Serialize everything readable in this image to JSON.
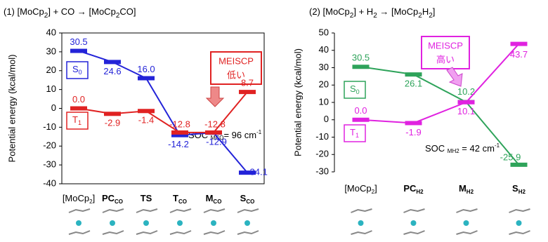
{
  "chart_data": [
    {
      "type": "line",
      "title": [
        "(1) [MoCp",
        "2",
        "] + CO  →   [MoCp",
        "2",
        "CO]"
      ],
      "y_label": "Potential energy (kcal/mol)",
      "categories": [
        [
          "[MoCp",
          "2",
          "]"
        ],
        [
          "PC",
          "CO"
        ],
        [
          "TS"
        ],
        [
          "T",
          "CO"
        ],
        [
          "M",
          "CO"
        ],
        [
          "S",
          "CO"
        ]
      ],
      "series": [
        {
          "name": [
            "S",
            "0"
          ],
          "color": "#2323d8",
          "values": [
            30.5,
            24.6,
            16.0,
            -14.2,
            -12.9,
            -34.1
          ],
          "value_labels": [
            "30.5",
            "24.6",
            "16.0",
            "-14.2",
            "-12.9",
            "-34.1"
          ]
        },
        {
          "name": [
            "T",
            "1"
          ],
          "color": "#e02222",
          "values": [
            0.0,
            -2.9,
            -1.4,
            -12.8,
            -12.8,
            8.7
          ],
          "value_labels": [
            "0.0",
            "-2.9",
            "-1.4",
            "-12.8",
            "-12.8",
            "8.7"
          ]
        }
      ],
      "ylim": [
        -40,
        40
      ],
      "yticks": [
        -40,
        -30,
        -20,
        -10,
        0,
        10,
        20,
        30,
        40
      ],
      "annotation_box": [
        "MEISCP",
        "低い"
      ],
      "soc": [
        "SOC ",
        "MCO",
        "= 96 cm",
        "-1"
      ]
    },
    {
      "type": "line",
      "title": [
        "(2) [MoCp",
        "2",
        "] + H",
        "2",
        "  →   [MoCp",
        "2",
        "H",
        "2",
        "]"
      ],
      "y_label": "Potential energy (kcal/mol)",
      "categories": [
        [
          "[MoCp",
          "2",
          "]"
        ],
        [
          "PC",
          "H2"
        ],
        [
          "M",
          "H2"
        ],
        [
          "S",
          "H2"
        ]
      ],
      "series": [
        {
          "name": [
            "S",
            "0"
          ],
          "color": "#2ea35a",
          "values": [
            30.5,
            26.1,
            10.2,
            -25.9
          ],
          "value_labels": [
            "30.5",
            "26.1",
            "10.2",
            "-25.9"
          ]
        },
        {
          "name": [
            "T",
            "1"
          ],
          "color": "#e022e0",
          "values": [
            0.0,
            -1.9,
            10.1,
            43.7
          ],
          "value_labels": [
            "0.0",
            "-1.9",
            "10.1",
            "43.7"
          ]
        }
      ],
      "ylim": [
        -30,
        50
      ],
      "yticks": [
        -30,
        -20,
        -10,
        0,
        10,
        20,
        30,
        40,
        50
      ],
      "annotation_box": [
        "MEISCP",
        "高い"
      ],
      "soc": [
        "SOC ",
        "MH2",
        " = 42 cm",
        "-1"
      ]
    }
  ]
}
